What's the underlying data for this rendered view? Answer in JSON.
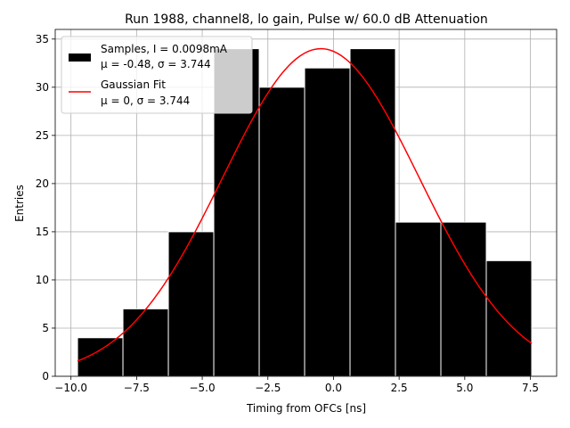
{
  "chart_data": {
    "type": "bar",
    "title": "Run 1988, channel8, lo gain, Pulse w/ 60.0 dB Attenuation",
    "xlabel": "Timing from OFCs [ns]",
    "ylabel": "Entries",
    "xlim": [
      -10.6,
      8.5
    ],
    "ylim": [
      0,
      36
    ],
    "grid": true,
    "xticks": [
      -10.0,
      -7.5,
      -5.0,
      -2.5,
      0.0,
      2.5,
      5.0,
      7.5
    ],
    "xtick_labels": [
      "−10.0",
      "−7.5",
      "−5.0",
      "−2.5",
      "0.0",
      "2.5",
      "5.0",
      "7.5"
    ],
    "yticks": [
      0,
      5,
      10,
      15,
      20,
      25,
      30,
      35
    ],
    "ytick_labels": [
      "0",
      "5",
      "10",
      "15",
      "20",
      "25",
      "30",
      "35"
    ],
    "histogram": {
      "bin_edges": [
        -9.75,
        -8.02,
        -6.29,
        -4.56,
        -2.83,
        -1.1,
        0.63,
        2.36,
        4.09,
        5.82,
        7.55
      ],
      "counts": [
        4,
        7,
        15,
        34,
        30,
        32,
        34,
        16,
        16,
        12
      ],
      "color": "#000000",
      "edge_color": "#ffffff"
    },
    "fit": {
      "type": "gaussian",
      "mu": -0.48,
      "sigma": 3.744,
      "amplitude": 34,
      "x_range": [
        -9.75,
        7.55
      ],
      "color": "#ff0000"
    },
    "legend": {
      "location": "upper left",
      "entries": [
        {
          "line1": "Samples, I = 0.0098mA",
          "line2": "μ = -0.48, σ = 3.744",
          "style": "patch",
          "color": "#000000"
        },
        {
          "line1": "Gaussian Fit",
          "line2": "μ = 0, σ = 3.744",
          "style": "line",
          "color": "#ff0000"
        }
      ]
    }
  }
}
